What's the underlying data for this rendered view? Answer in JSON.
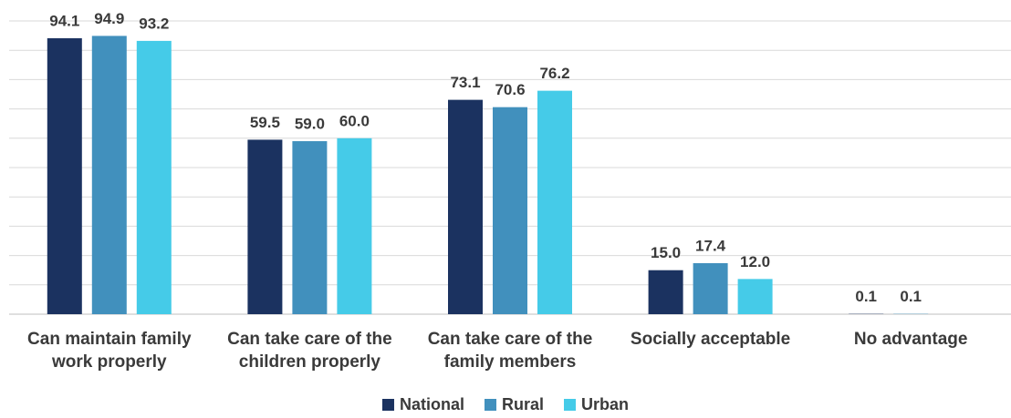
{
  "chart_data": {
    "type": "bar",
    "categories": [
      "Can maintain family work properly",
      "Can take care of the children properly",
      "Can take care of the family members",
      "Socially acceptable",
      "No advantage"
    ],
    "series": [
      {
        "name": "National",
        "color": "#1b3260",
        "values": [
          94.1,
          59.5,
          73.1,
          15.0,
          0.1
        ],
        "value_labels": [
          "94.1",
          "59.5",
          "73.1",
          "15.0",
          "0.1"
        ]
      },
      {
        "name": "Rural",
        "color": "#4190bd",
        "values": [
          94.9,
          59.0,
          70.6,
          17.4,
          0.1
        ],
        "value_labels": [
          "94.9",
          "59.0",
          "70.6",
          "17.4",
          "0.1"
        ]
      },
      {
        "name": "Urban",
        "color": "#45cbe8",
        "values": [
          93.2,
          60.0,
          76.2,
          12.0,
          null
        ],
        "value_labels": [
          "93.2",
          "60.0",
          "76.2",
          "12.0",
          null
        ]
      }
    ],
    "ylim": [
      0,
      100
    ],
    "yticks": [
      0,
      10,
      20,
      30,
      40,
      50,
      60,
      70,
      80,
      90,
      100
    ],
    "grid": true,
    "legend": "bottom"
  }
}
